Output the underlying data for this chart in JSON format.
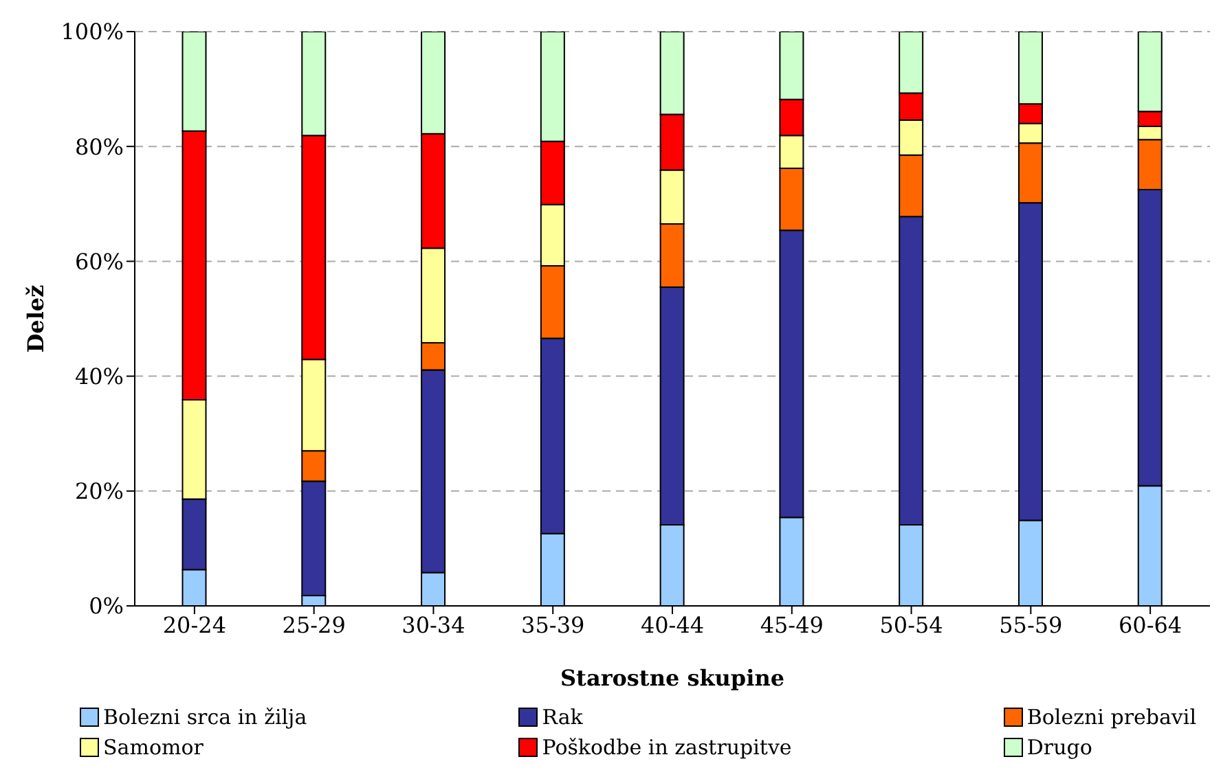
{
  "chart_data": {
    "type": "bar",
    "stacked": true,
    "xlabel": "Starostne skupine",
    "ylabel": "Delež",
    "categories": [
      "20-24",
      "25-29",
      "30-34",
      "35-39",
      "40-44",
      "45-49",
      "50-54",
      "55-59",
      "60-64"
    ],
    "series": [
      {
        "name": "Bolezni srca in žilja",
        "color": "#99ccff",
        "values": [
          6.3,
          1.8,
          5.8,
          12.6,
          14.1,
          15.4,
          14.1,
          14.9,
          20.9
        ]
      },
      {
        "name": "Rak",
        "color": "#333399",
        "values": [
          12.3,
          19.9,
          35.3,
          34.0,
          41.4,
          50.0,
          53.7,
          55.3,
          51.6
        ]
      },
      {
        "name": "Bolezni prebavil",
        "color": "#ff6600",
        "values": [
          0,
          5.3,
          4.7,
          12.6,
          11.0,
          10.8,
          10.7,
          10.4,
          8.7
        ]
      },
      {
        "name": "Samomor",
        "color": "#ffff99",
        "values": [
          17.3,
          15.9,
          16.5,
          10.7,
          9.4,
          5.7,
          6.1,
          3.4,
          2.3
        ]
      },
      {
        "name": "Poškodbe in zastrupitve",
        "color": "#ff0000",
        "values": [
          46.8,
          39.0,
          19.9,
          11.0,
          9.7,
          6.3,
          4.7,
          3.4,
          2.6
        ]
      },
      {
        "name": "Drugo",
        "color": "#ccffcc",
        "values": [
          17.3,
          18.1,
          17.8,
          19.1,
          14.4,
          11.8,
          10.7,
          12.6,
          13.9
        ]
      }
    ],
    "ylim": [
      0,
      100
    ],
    "yticks": [
      {
        "value": 0,
        "label": "0%"
      },
      {
        "value": 20,
        "label": "20%"
      },
      {
        "value": 40,
        "label": "40%"
      },
      {
        "value": 60,
        "label": "60%"
      },
      {
        "value": 80,
        "label": "80%"
      },
      {
        "value": 100,
        "label": "100%"
      }
    ],
    "grid": "y",
    "legend": "bottom"
  }
}
